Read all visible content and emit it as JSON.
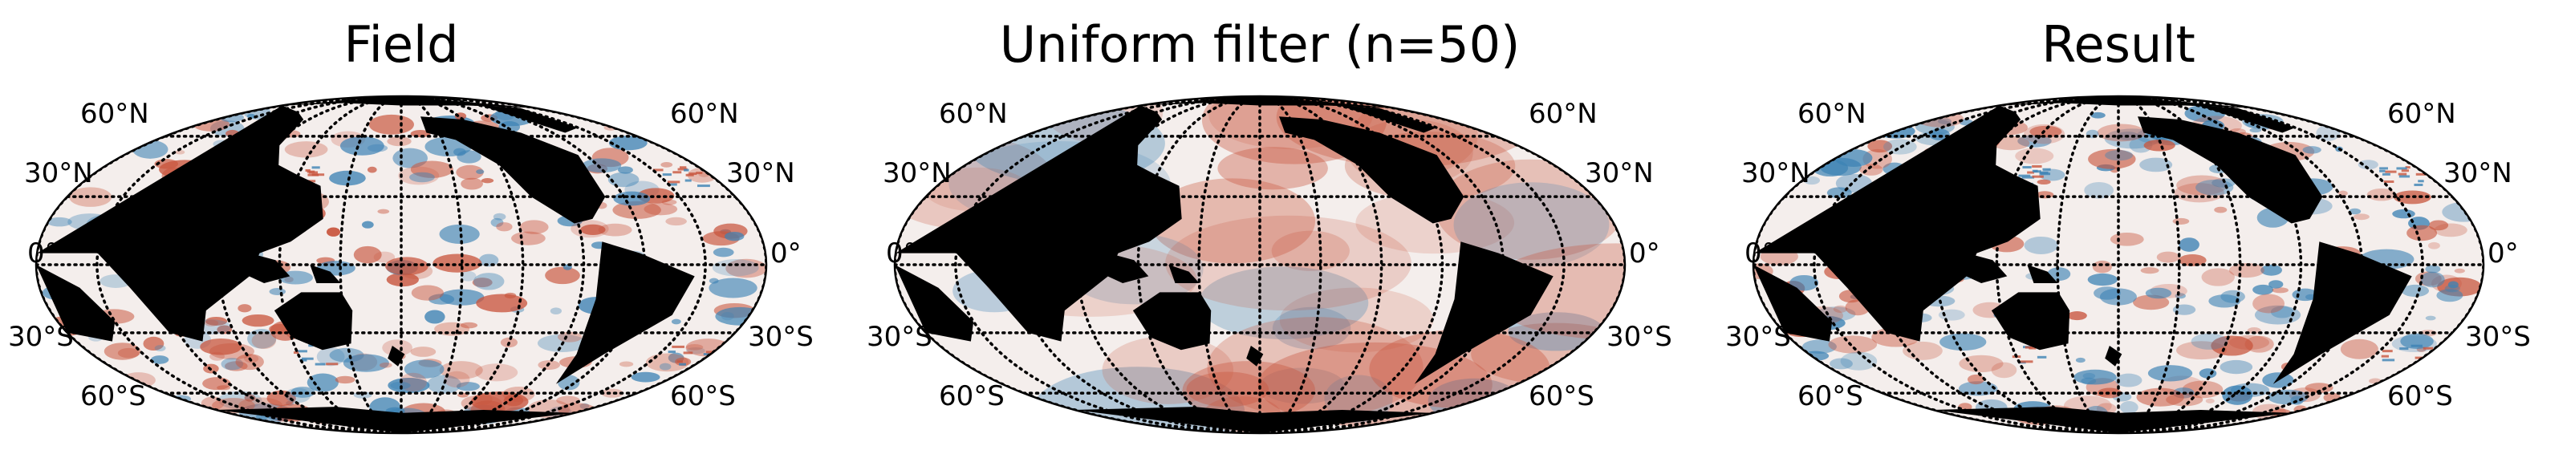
{
  "panels": [
    {
      "title": "Field",
      "variant": "field"
    },
    {
      "title": "Uniform filter (n=50)",
      "variant": "smooth"
    },
    {
      "title": "Result",
      "variant": "result"
    }
  ],
  "lat_labels": {
    "n60": "60°N",
    "n30": "30°N",
    "eq": "0°",
    "s30": "30°S",
    "s60": "60°S"
  },
  "colors": {
    "land": "#000000",
    "ocean_base": "#f4eeec",
    "positive": "#c8553d",
    "negative": "#3c82b4",
    "gridline": "#000000"
  }
}
